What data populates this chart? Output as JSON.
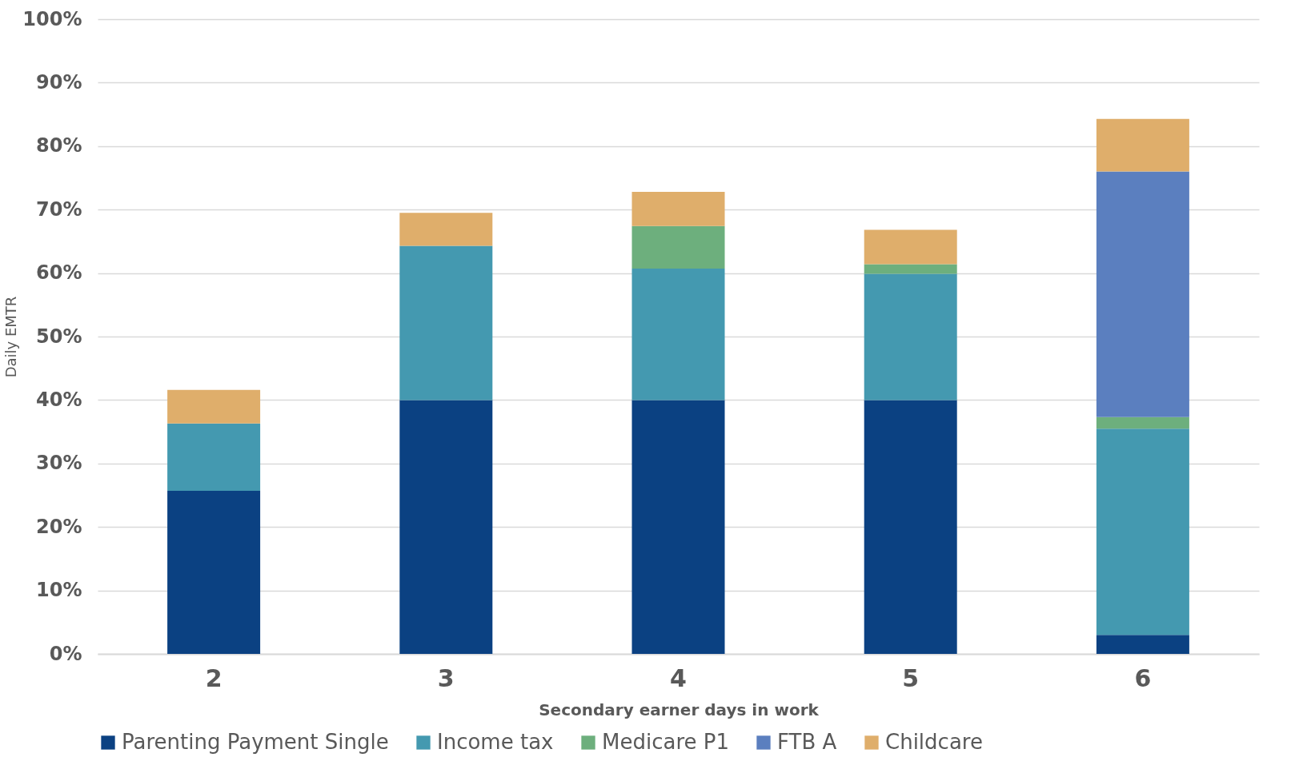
{
  "chart_data": {
    "type": "bar",
    "stacked": true,
    "xlabel": "Secondary earner days in work",
    "ylabel": "Daily EMTR",
    "categories": [
      "2",
      "3",
      "4",
      "5",
      "6"
    ],
    "series": [
      {
        "name": "Parenting Payment Single",
        "color": "#0b4182",
        "values": [
          25.7,
          40,
          40,
          40,
          3.0
        ]
      },
      {
        "name": "Income tax",
        "color": "#4499b0",
        "values": [
          10.6,
          24.3,
          20.7,
          19.9,
          32.5
        ]
      },
      {
        "name": "Medicare P1",
        "color": "#6daf7d",
        "values": [
          0,
          0,
          6.7,
          1.5,
          1.8
        ]
      },
      {
        "name": "FTB A",
        "color": "#5b7fbf",
        "values": [
          0,
          0,
          0,
          0,
          38.7
        ]
      },
      {
        "name": "Childcare",
        "color": "#dfae6b",
        "values": [
          5.3,
          5.2,
          5.4,
          5.4,
          8.3
        ]
      }
    ],
    "ylim": [
      0,
      100
    ],
    "yticks": [
      {
        "value": 0,
        "label": "0%"
      },
      {
        "value": 10,
        "label": "10%"
      },
      {
        "value": 20,
        "label": "20%"
      },
      {
        "value": 30,
        "label": "30%"
      },
      {
        "value": 40,
        "label": "40%"
      },
      {
        "value": 50,
        "label": "50%"
      },
      {
        "value": 60,
        "label": "60%"
      },
      {
        "value": 70,
        "label": "70%"
      },
      {
        "value": 80,
        "label": "80%"
      },
      {
        "value": 90,
        "label": "90%"
      },
      {
        "value": 100,
        "label": "100%"
      }
    ],
    "grid": "y",
    "legend": "bottom"
  }
}
